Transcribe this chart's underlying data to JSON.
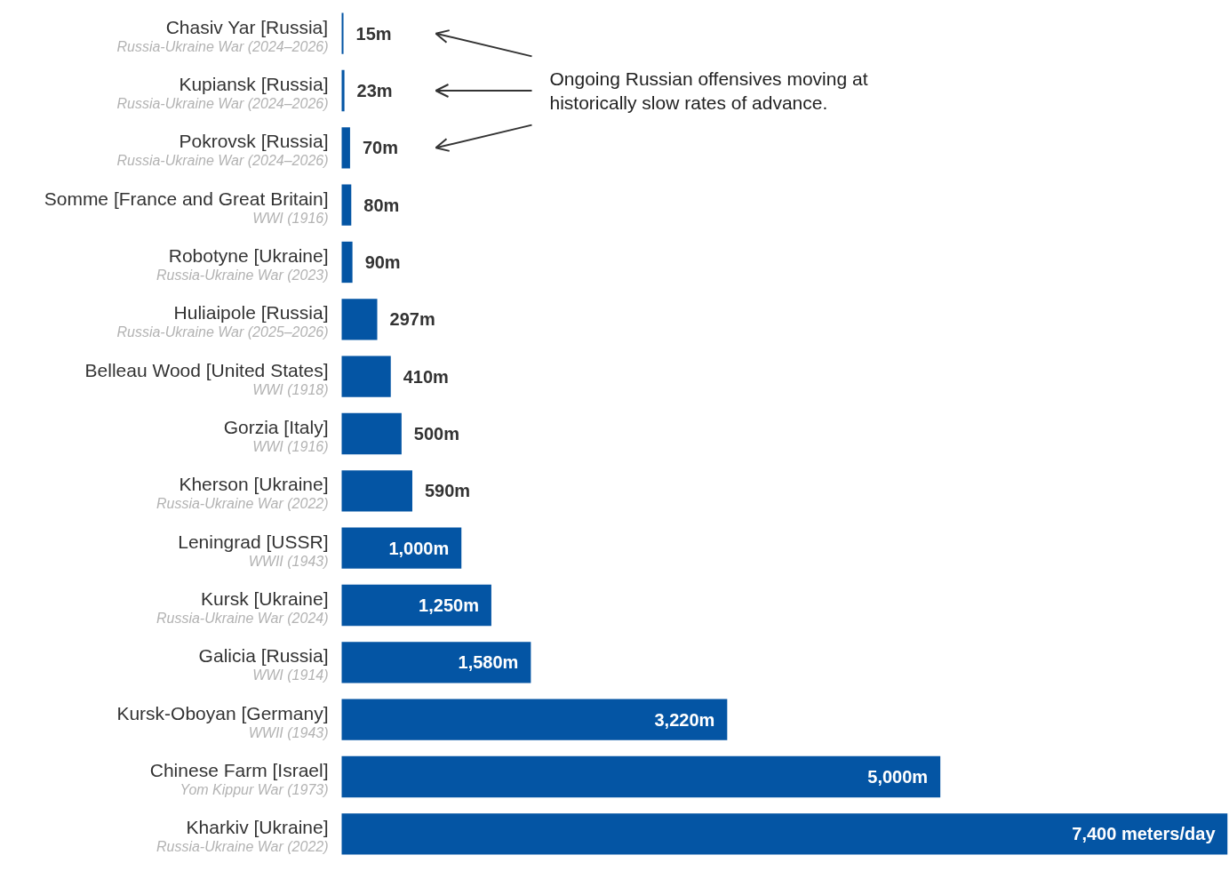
{
  "chart_data": {
    "type": "bar",
    "orientation": "horizontal",
    "categories": [
      "Chasiv Yar [Russia]\nRussia-Ukraine War (2024–2026)",
      "Kupiansk [Russia]\nRussia-Ukraine War (2024–2026)",
      "Pokrovsk [Russia]\nRussia-Ukraine War (2024–2026)",
      "Somme [France and Great Britain]\nWWI (1916)",
      "Robotyne [Ukraine]\nRussia-Ukraine War (2023)",
      "Huliaipole [Russia]\nRussia-Ukraine War (2025–2026)",
      "Belleau Wood [United States]\nWWI (1918)",
      "Gorzia [Italy]\nWWI (1916)",
      "Kherson [Ukraine]\nRussia-Ukraine War (2022)",
      "Leningrad [USSR]\nWWII (1943)",
      "Kursk [Ukraine]\nRussia-Ukraine War (2024)",
      "Galicia [Russia]\nWWI (1914)",
      "Kursk-Oboyan [Germany]\nWWII (1943)",
      "Chinese Farm [Israel]\nYom Kippur War (1973)",
      "Kharkiv [Ukraine]\nRussia-Ukraine War (2022)"
    ],
    "values": [
      15,
      23,
      70,
      80,
      90,
      297,
      410,
      500,
      590,
      1000,
      1250,
      1580,
      3220,
      5000,
      7400
    ],
    "value_labels": [
      "15m",
      "23m",
      "70m",
      "80m",
      "90m",
      "297m",
      "410m",
      "500m",
      "590m",
      "1,000m",
      "1,250m",
      "1,580m",
      "3,220m",
      "5,000m",
      "7,400 meters/day"
    ],
    "color": "#0455a4",
    "xlim": [
      0,
      7400
    ],
    "tick_labels": false,
    "grid": false,
    "annotations": [
      "Ongoing Russian offensives moving at historically slow rates of advance."
    ]
  }
}
